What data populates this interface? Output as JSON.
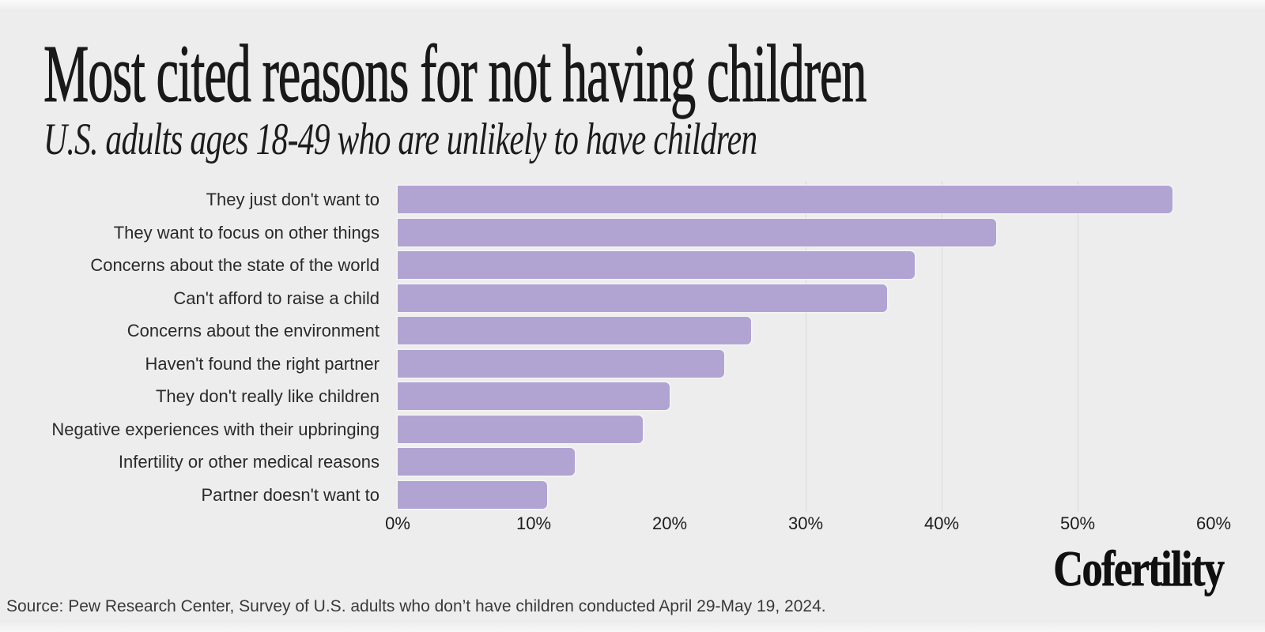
{
  "header": {
    "title": "Most cited reasons for not having children",
    "subtitle": "U.S. adults ages 18-49 who are unlikely to have children"
  },
  "chart_data": {
    "type": "bar",
    "orientation": "horizontal",
    "categories": [
      "They just don't want to",
      "They want to focus on other things",
      "Concerns about the state of the world",
      "Can't afford to raise a child",
      "Concerns about the environment",
      "Haven't found the right partner",
      "They don't really like children",
      "Negative experiences with their upbringing",
      "Infertility or other medical reasons",
      "Partner doesn't want to"
    ],
    "values": [
      57,
      44,
      38,
      36,
      26,
      24,
      20,
      18,
      13,
      11
    ],
    "unit": "%",
    "xlim": [
      0,
      60
    ],
    "x_ticks": [
      "0%",
      "10%",
      "20%",
      "30%",
      "40%",
      "50%",
      "60%"
    ],
    "gridlines_at": [
      30,
      40,
      50
    ],
    "grid": "vertical-partial",
    "legend": "none",
    "bar_color": "#b1a4d2",
    "gridline_color": "#dbdbd9",
    "background_color": "#ecedec",
    "title": "Most cited reasons for not having children",
    "subtitle": "U.S. adults ages 18-49 who are unlikely to have children"
  },
  "footer": {
    "brand": "Cofertility",
    "source": "Source: Pew Research Center, Survey of U.S. adults who don’t have children conducted April 29-May 19, 2024."
  }
}
